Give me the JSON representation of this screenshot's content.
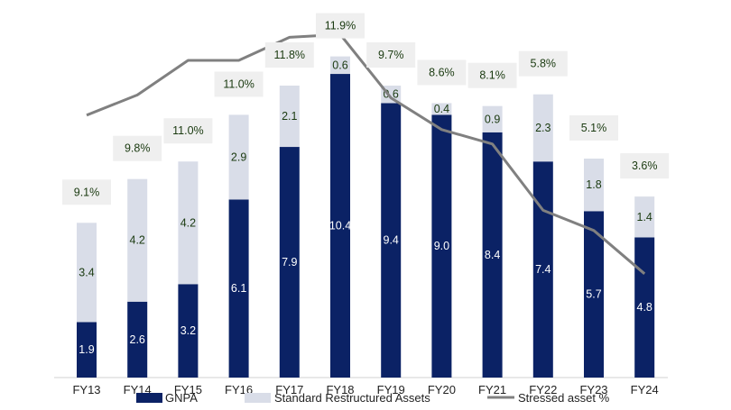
{
  "chart_data": {
    "type": "bar",
    "stacked": true,
    "categories": [
      "FY13",
      "FY14",
      "FY15",
      "FY16",
      "FY17",
      "FY18",
      "FY19",
      "FY20",
      "FY21",
      "FY22",
      "FY23",
      "FY24"
    ],
    "series": [
      {
        "name": "GNPA",
        "type": "bar",
        "color": "#0b2265",
        "values": [
          1.9,
          2.6,
          3.2,
          6.1,
          7.9,
          10.4,
          9.4,
          9.0,
          8.4,
          7.4,
          5.7,
          4.8
        ],
        "labels": [
          "1.9",
          "2.6",
          "3.2",
          "6.1",
          "7.9",
          "10.4",
          "9.4",
          "9.0",
          "8.4",
          "7.4",
          "5.7",
          "4.8"
        ]
      },
      {
        "name": "Standard Restructured Assets",
        "type": "bar",
        "color": "#d9dde8",
        "values": [
          3.4,
          4.2,
          4.2,
          2.9,
          2.1,
          0.6,
          0.6,
          0.4,
          0.9,
          2.3,
          1.8,
          1.4
        ],
        "labels": [
          "3.4",
          "4.2",
          "4.2",
          "2.9",
          "2.1",
          "0.6",
          "0.6",
          "0.4",
          "0.9",
          "2.3",
          "1.8",
          "1.4"
        ]
      },
      {
        "name": "Stressed asset %",
        "type": "line",
        "color": "#808080",
        "values": [
          9.1,
          9.8,
          11.0,
          11.0,
          11.8,
          11.9,
          9.7,
          8.6,
          8.1,
          5.8,
          5.1,
          3.6
        ],
        "labels": [
          "9.1%",
          "9.8%",
          "11.0%",
          "11.0%",
          "11.8%",
          "11.9%",
          "9.7%",
          "8.6%",
          "8.1%",
          "5.8%",
          "5.1%",
          "3.6%"
        ]
      }
    ],
    "legend": [
      "GNPA",
      "Standard Restructured Assets",
      "Stressed asset %"
    ],
    "legend_position": "bottom",
    "grid": false,
    "title": "",
    "xlabel": "",
    "ylabel": ""
  }
}
